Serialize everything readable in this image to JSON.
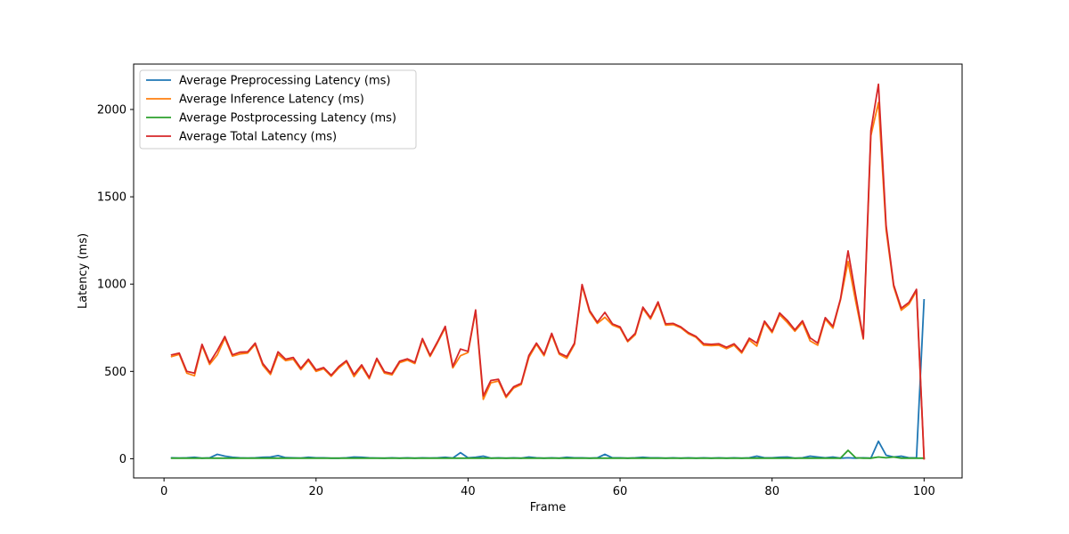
{
  "chart_data": {
    "type": "line",
    "xlabel": "Frame",
    "ylabel": "Latency (ms)",
    "xlim": [
      -4,
      105
    ],
    "ylim": [
      -110,
      2260
    ],
    "xticks": [
      0,
      20,
      40,
      60,
      80,
      100
    ],
    "yticks": [
      0,
      500,
      1000,
      1500,
      2000
    ],
    "grid": false,
    "legend_position": "top-left",
    "x": [
      1,
      2,
      3,
      4,
      5,
      6,
      7,
      8,
      9,
      10,
      11,
      12,
      13,
      14,
      15,
      16,
      17,
      18,
      19,
      20,
      21,
      22,
      23,
      24,
      25,
      26,
      27,
      28,
      29,
      30,
      31,
      32,
      33,
      34,
      35,
      36,
      37,
      38,
      39,
      40,
      41,
      42,
      43,
      44,
      45,
      46,
      47,
      48,
      49,
      50,
      51,
      52,
      53,
      54,
      55,
      56,
      57,
      58,
      59,
      60,
      61,
      62,
      63,
      64,
      65,
      66,
      67,
      68,
      69,
      70,
      71,
      72,
      73,
      74,
      75,
      76,
      77,
      78,
      79,
      80,
      81,
      82,
      83,
      84,
      85,
      86,
      87,
      88,
      89,
      90,
      91,
      92,
      93,
      94,
      95,
      96,
      97,
      98,
      99,
      100
    ],
    "series": [
      {
        "name": "Average Preprocessing Latency (ms)",
        "color": "#1f77b4",
        "values": [
          5,
          4,
          5,
          8,
          3,
          5,
          25,
          15,
          8,
          5,
          4,
          5,
          8,
          10,
          18,
          6,
          5,
          4,
          8,
          5,
          5,
          3,
          3,
          5,
          10,
          8,
          5,
          4,
          3,
          5,
          3,
          5,
          3,
          5,
          4,
          5,
          8,
          4,
          35,
          5,
          8,
          15,
          3,
          5,
          3,
          5,
          3,
          10,
          5,
          3,
          5,
          3,
          8,
          5,
          5,
          3,
          5,
          25,
          5,
          5,
          3,
          5,
          8,
          5,
          5,
          3,
          5,
          3,
          5,
          3,
          5,
          3,
          5,
          3,
          5,
          3,
          5,
          15,
          5,
          5,
          8,
          10,
          3,
          5,
          15,
          10,
          5,
          10,
          3,
          5,
          3,
          5,
          3,
          100,
          20,
          10,
          15,
          5,
          5,
          910
        ]
      },
      {
        "name": "Average Inference Latency (ms)",
        "color": "#ff7f0e",
        "values": [
          585,
          598,
          490,
          475,
          648,
          540,
          595,
          690,
          588,
          600,
          605,
          655,
          535,
          482,
          598,
          562,
          570,
          510,
          562,
          500,
          515,
          472,
          520,
          555,
          470,
          528,
          458,
          568,
          490,
          480,
          550,
          565,
          545,
          680,
          585,
          665,
          750,
          520,
          590,
          608,
          845,
          340,
          435,
          445,
          350,
          405,
          425,
          580,
          655,
          590,
          710,
          598,
          575,
          655,
          990,
          840,
          775,
          810,
          765,
          748,
          670,
          710,
          860,
          800,
          890,
          765,
          768,
          750,
          715,
          695,
          650,
          648,
          650,
          630,
          650,
          605,
          680,
          645,
          780,
          722,
          825,
          780,
          730,
          780,
          675,
          650,
          800,
          748,
          910,
          1130,
          900,
          685,
          1850,
          2040,
          1310,
          985,
          850,
          885,
          960,
          0
        ]
      },
      {
        "name": "Average Postprocessing Latency (ms)",
        "color": "#2ca02c",
        "values": [
          3,
          3,
          3,
          3,
          3,
          3,
          3,
          3,
          3,
          3,
          3,
          3,
          3,
          3,
          3,
          3,
          3,
          3,
          3,
          3,
          3,
          3,
          3,
          3,
          3,
          3,
          3,
          3,
          3,
          3,
          3,
          3,
          3,
          3,
          3,
          3,
          3,
          3,
          3,
          3,
          3,
          3,
          3,
          3,
          3,
          3,
          3,
          3,
          3,
          3,
          3,
          3,
          3,
          3,
          3,
          3,
          3,
          3,
          3,
          3,
          3,
          3,
          3,
          3,
          3,
          3,
          3,
          3,
          3,
          3,
          3,
          3,
          3,
          3,
          3,
          3,
          3,
          3,
          3,
          3,
          3,
          3,
          3,
          3,
          3,
          3,
          3,
          3,
          3,
          48,
          5,
          3,
          3,
          10,
          5,
          10,
          3,
          3,
          3,
          3
        ]
      },
      {
        "name": "Average Total Latency (ms)",
        "color": "#d62728",
        "values": [
          595,
          605,
          500,
          490,
          655,
          550,
          620,
          700,
          595,
          610,
          612,
          662,
          545,
          492,
          612,
          570,
          580,
          518,
          570,
          508,
          522,
          478,
          528,
          562,
          482,
          538,
          465,
          575,
          498,
          488,
          558,
          572,
          552,
          688,
          592,
          672,
          758,
          528,
          628,
          615,
          852,
          360,
          448,
          455,
          358,
          412,
          432,
          592,
          662,
          598,
          718,
          605,
          585,
          662,
          998,
          848,
          782,
          838,
          772,
          755,
          675,
          718,
          868,
          808,
          898,
          772,
          775,
          755,
          722,
          700,
          658,
          655,
          658,
          638,
          658,
          612,
          690,
          662,
          788,
          730,
          835,
          792,
          738,
          790,
          692,
          662,
          808,
          758,
          915,
          1190,
          935,
          690,
          1880,
          2145,
          1335,
          995,
          862,
          895,
          970,
          0
        ]
      }
    ]
  }
}
